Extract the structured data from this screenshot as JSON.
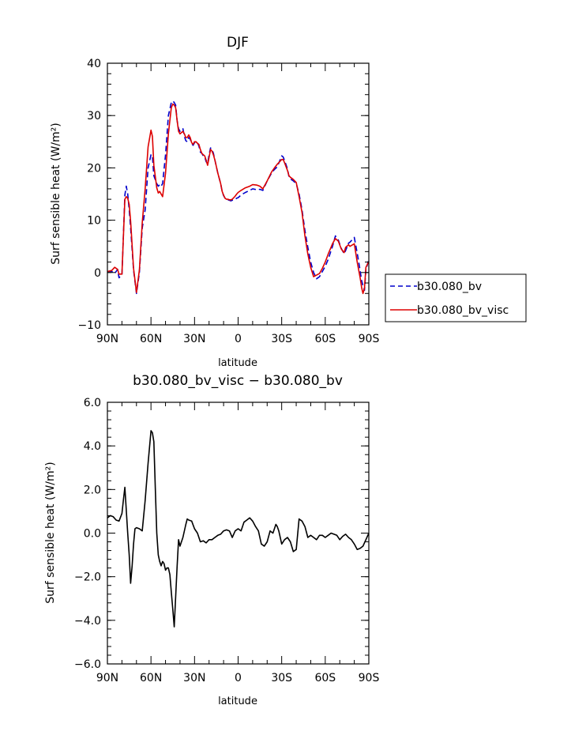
{
  "chart_data": [
    {
      "type": "line",
      "title": "DJF",
      "xlabel": "latitude",
      "ylabel": "Surf sensible heat (W/m²)",
      "xlim": [
        90,
        -90
      ],
      "ylim": [
        -10,
        40
      ],
      "x_ticks": [
        "90N",
        "60N",
        "30N",
        "0",
        "30S",
        "60S",
        "90S"
      ],
      "x_tick_values": [
        90,
        60,
        30,
        0,
        -30,
        -60,
        -90
      ],
      "y_ticks": [
        "−10",
        "0",
        "10",
        "20",
        "30",
        "40"
      ],
      "y_tick_values": [
        -10,
        0,
        10,
        20,
        30,
        40
      ],
      "legend_position": "right",
      "series": [
        {
          "name": "b30.080_bv",
          "color": "#0000cc",
          "dash": "dashed",
          "x": [
            90,
            87,
            85,
            83,
            82,
            80,
            78,
            77,
            76,
            75,
            74,
            72,
            70,
            68,
            66,
            64,
            62,
            60,
            59,
            58,
            56,
            55,
            54,
            53,
            52,
            50,
            48,
            46,
            45,
            44,
            43,
            42,
            41,
            40,
            38,
            37,
            36,
            35,
            34,
            33,
            32,
            31,
            30,
            29,
            28,
            27,
            26,
            25,
            24,
            23,
            22,
            21,
            20,
            19,
            18,
            17,
            16,
            14,
            12,
            11,
            10,
            9,
            8,
            7,
            6,
            5,
            4,
            3,
            2,
            1,
            0,
            -2,
            -5,
            -8,
            -10,
            -13,
            -15,
            -17,
            -20,
            -23,
            -25,
            -27,
            -30,
            -31,
            -32,
            -34,
            -35,
            -36,
            -38,
            -40,
            -42,
            -44,
            -46,
            -48,
            -50,
            -52,
            -54,
            -56,
            -58,
            -60,
            -62,
            -65,
            -67,
            -69,
            -71,
            -73,
            -74,
            -76,
            -77,
            -80,
            -82,
            -84,
            -85,
            -86,
            -87,
            -88,
            -90
          ],
          "y": [
            0.2,
            0.2,
            -0.2,
            0.6,
            -1.0,
            -0.5,
            14.8,
            16.5,
            15.0,
            12.0,
            8.5,
            0.5,
            -4.0,
            0.0,
            8.5,
            12.0,
            20.0,
            22.5,
            22.2,
            18.5,
            17.0,
            16.5,
            16.8,
            16.5,
            17.0,
            22.5,
            30.0,
            32.5,
            32.8,
            32.5,
            32.0,
            29.0,
            27.5,
            27.0,
            27.5,
            26.0,
            25.2,
            25.0,
            25.8,
            25.5,
            24.7,
            24.3,
            24.8,
            25.0,
            24.8,
            24.2,
            23.0,
            22.8,
            22.3,
            22.1,
            21.2,
            20.8,
            22.5,
            23.8,
            23.5,
            22.8,
            21.5,
            19.0,
            17.0,
            15.5,
            14.7,
            14.2,
            13.9,
            13.9,
            13.8,
            13.7,
            13.8,
            13.9,
            14.0,
            14.2,
            14.3,
            14.8,
            15.3,
            15.7,
            16.0,
            15.8,
            15.9,
            15.7,
            17.5,
            19.0,
            19.7,
            20.2,
            22.3,
            22.1,
            21.4,
            19.8,
            18.3,
            17.9,
            17.5,
            17.0,
            15.0,
            12.0,
            8.0,
            4.8,
            2.0,
            0.0,
            -1.2,
            -0.8,
            0.2,
            1.2,
            2.5,
            5.0,
            7.0,
            6.2,
            4.6,
            3.6,
            4.2,
            5.6,
            5.8,
            6.7,
            3.7,
            0.4,
            -1.5,
            -2.5,
            -3.4,
            0.5,
            2.5
          ]
        },
        {
          "name": "b30.080_bv_visc",
          "color": "#dd0000",
          "dash": "solid",
          "x": [
            90,
            87,
            85,
            83,
            82,
            80,
            78,
            77,
            76,
            75,
            74,
            72,
            70,
            68,
            66,
            64,
            62,
            60,
            59,
            58,
            56,
            55,
            54,
            53,
            52,
            50,
            48,
            46,
            45,
            44,
            43,
            42,
            41,
            40,
            38,
            37,
            36,
            35,
            34,
            33,
            32,
            31,
            30,
            29,
            28,
            27,
            26,
            25,
            24,
            23,
            22,
            21,
            20,
            19,
            18,
            17,
            16,
            14,
            12,
            11,
            10,
            9,
            8,
            7,
            6,
            5,
            4,
            3,
            2,
            1,
            0,
            -2,
            -5,
            -8,
            -10,
            -13,
            -15,
            -17,
            -20,
            -23,
            -25,
            -27,
            -30,
            -31,
            -32,
            -34,
            -35,
            -36,
            -38,
            -40,
            -42,
            -44,
            -46,
            -48,
            -50,
            -52,
            -54,
            -56,
            -58,
            -60,
            -62,
            -65,
            -67,
            -69,
            -71,
            -73,
            -74,
            -76,
            -77,
            -80,
            -82,
            -84,
            -85,
            -86,
            -87,
            -88,
            -90
          ],
          "y": [
            0.2,
            0.4,
            1.0,
            0.6,
            -0.3,
            -0.3,
            14.0,
            14.5,
            14.2,
            13.0,
            9.8,
            0.8,
            -3.8,
            0.5,
            9.5,
            16.0,
            24.0,
            27.2,
            26.0,
            20.5,
            16.2,
            15.2,
            15.5,
            15.0,
            14.5,
            19.0,
            26.5,
            31.5,
            32.2,
            32.0,
            31.5,
            29.0,
            27.0,
            26.5,
            27.0,
            26.5,
            25.8,
            25.8,
            26.3,
            25.8,
            24.8,
            24.5,
            25.0,
            25.0,
            24.7,
            24.5,
            23.5,
            22.8,
            22.5,
            22.3,
            21.5,
            20.5,
            22.0,
            23.5,
            23.2,
            22.5,
            21.5,
            19.0,
            17.0,
            15.5,
            14.8,
            14.2,
            14.0,
            14.0,
            13.9,
            13.9,
            14.0,
            14.3,
            14.6,
            15.0,
            15.3,
            15.7,
            16.2,
            16.5,
            16.8,
            16.7,
            16.5,
            16.0,
            17.5,
            19.2,
            20.0,
            20.7,
            21.6,
            21.6,
            21.0,
            19.5,
            18.5,
            18.2,
            17.8,
            17.2,
            14.5,
            11.5,
            7.0,
            3.5,
            1.0,
            -0.8,
            -0.5,
            -0.2,
            0.8,
            2.0,
            3.5,
            5.5,
            6.5,
            6.0,
            4.5,
            3.8,
            4.8,
            5.3,
            5.0,
            5.5,
            2.0,
            -1.0,
            -2.8,
            -4.0,
            -3.0,
            1.0,
            2.1
          ]
        }
      ]
    },
    {
      "type": "line",
      "title": "b30.080_bv_visc − b30.080_bv",
      "xlabel": "latitude",
      "ylabel": "Surf sensible heat (W/m²)",
      "xlim": [
        90,
        -90
      ],
      "ylim": [
        -6,
        6
      ],
      "x_ticks": [
        "90N",
        "60N",
        "30N",
        "0",
        "30S",
        "60S",
        "90S"
      ],
      "x_tick_values": [
        90,
        60,
        30,
        0,
        -30,
        -60,
        -90
      ],
      "y_ticks": [
        "−6.0",
        "−4.0",
        "−2.0",
        "0.0",
        "2.0",
        "4.0",
        "6.0"
      ],
      "y_tick_values": [
        -6,
        -4,
        -2,
        0,
        2,
        4,
        6
      ],
      "series": [
        {
          "color": "#000000",
          "dash": "solid",
          "x": [
            90,
            88,
            86,
            84,
            82,
            80,
            79,
            78,
            76,
            75,
            74,
            73,
            72,
            71,
            70,
            68,
            66,
            64,
            62,
            60,
            59,
            58,
            57,
            56,
            55,
            54,
            53,
            52,
            51,
            50,
            49,
            48,
            47,
            46,
            45,
            44,
            42,
            41,
            40,
            38,
            36,
            35,
            34,
            32,
            30,
            28,
            26,
            24,
            22,
            20,
            18,
            16,
            14,
            12,
            10,
            8,
            6,
            4,
            2,
            0,
            -2,
            -4,
            -6,
            -8,
            -10,
            -12,
            -14,
            -16,
            -18,
            -20,
            -22,
            -24,
            -26,
            -27,
            -28,
            -30,
            -32,
            -34,
            -36,
            -38,
            -40,
            -42,
            -44,
            -46,
            -48,
            -50,
            -52,
            -54,
            -56,
            -58,
            -60,
            -62,
            -64,
            -66,
            -68,
            -70,
            -72,
            -74,
            -76,
            -78,
            -80,
            -82,
            -84,
            -86,
            -88,
            -90
          ],
          "y": [
            0.7,
            0.8,
            0.75,
            0.6,
            0.55,
            0.9,
            1.5,
            2.1,
            0.0,
            -1.0,
            -2.3,
            -1.5,
            -0.5,
            0.2,
            0.25,
            0.2,
            0.1,
            1.5,
            3.2,
            4.7,
            4.6,
            4.2,
            2.0,
            0.0,
            -1.0,
            -1.3,
            -1.5,
            -1.3,
            -1.4,
            -1.7,
            -1.6,
            -1.6,
            -1.9,
            -2.7,
            -3.5,
            -4.3,
            -1.5,
            -0.3,
            -0.6,
            -0.2,
            0.4,
            0.65,
            0.6,
            0.55,
            0.2,
            0.0,
            -0.4,
            -0.35,
            -0.45,
            -0.3,
            -0.3,
            -0.2,
            -0.1,
            -0.05,
            0.1,
            0.15,
            0.1,
            -0.2,
            0.1,
            0.2,
            0.1,
            0.5,
            0.6,
            0.7,
            0.55,
            0.3,
            0.1,
            -0.5,
            -0.6,
            -0.4,
            0.1,
            0.0,
            0.4,
            0.3,
            0.1,
            -0.5,
            -0.3,
            -0.2,
            -0.4,
            -0.85,
            -0.75,
            0.65,
            0.55,
            0.3,
            -0.2,
            -0.1,
            -0.2,
            -0.3,
            -0.1,
            -0.1,
            -0.2,
            -0.1,
            0.0,
            -0.05,
            -0.1,
            -0.3,
            -0.15,
            -0.05,
            -0.2,
            -0.3,
            -0.5,
            -0.75,
            -0.7,
            -0.6,
            -0.3,
            0.0
          ]
        }
      ]
    }
  ]
}
